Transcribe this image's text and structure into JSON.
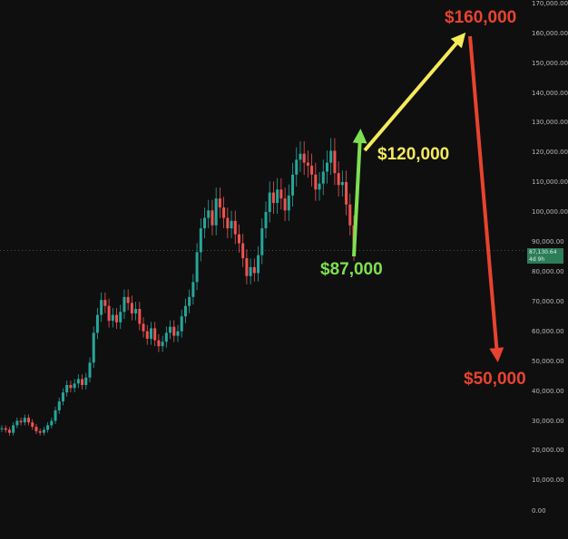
{
  "chart_data": {
    "type": "candlestick",
    "ylim": [
      0,
      170000
    ],
    "y_ticks": [
      "170,000.00",
      "160,000.00",
      "150,000.00",
      "140,000.00",
      "130,000.00",
      "120,000.00",
      "110,000.00",
      "100,000.00",
      "90,000.00",
      "80,000.00",
      "70,000.00",
      "60,000.00",
      "50,000.00",
      "40,000.00",
      "30,000.00",
      "20,000.00",
      "10,000.00",
      "0.00"
    ],
    "grid": false,
    "current_price_line": 87130.64,
    "price_badge": {
      "value": "87,130.64",
      "countdown": "4d 9h"
    },
    "colors": {
      "up": "#26a69a",
      "down": "#ef5350",
      "badge": "#2e7d59",
      "green": "#7ee050",
      "yellow": "#f5ea5a",
      "red": "#e8432e"
    },
    "closes": [
      28000,
      27500,
      26500,
      29000,
      30500,
      30000,
      31500,
      30000,
      28500,
      27000,
      26500,
      27500,
      29000,
      30500,
      34000,
      37000,
      40000,
      42500,
      41500,
      43000,
      44500,
      42500,
      45000,
      50000,
      60000,
      66000,
      71000,
      69000,
      64000,
      66000,
      63500,
      67000,
      72000,
      70000,
      66500,
      68000,
      63000,
      60500,
      58000,
      61500,
      57500,
      55500,
      57000,
      60000,
      62000,
      59000,
      60500,
      65500,
      69000,
      72000,
      77000,
      87000,
      95000,
      98500,
      101000,
      96000,
      105000,
      102000,
      98500,
      95000,
      97500,
      93000,
      90000,
      85000,
      79000,
      82000,
      80000,
      86000,
      95000,
      100500,
      107000,
      103500,
      108000,
      105000,
      101000,
      106000,
      113000,
      118000,
      120000,
      117000,
      116000,
      113000,
      108000,
      110000,
      114000,
      117000,
      121000,
      113500,
      109500,
      110500,
      103000,
      96000,
      87100
    ]
  },
  "annotations": {
    "p87": "$87,000",
    "p120": "$120,000",
    "p160": "$160,000",
    "p50": "$50,000"
  }
}
